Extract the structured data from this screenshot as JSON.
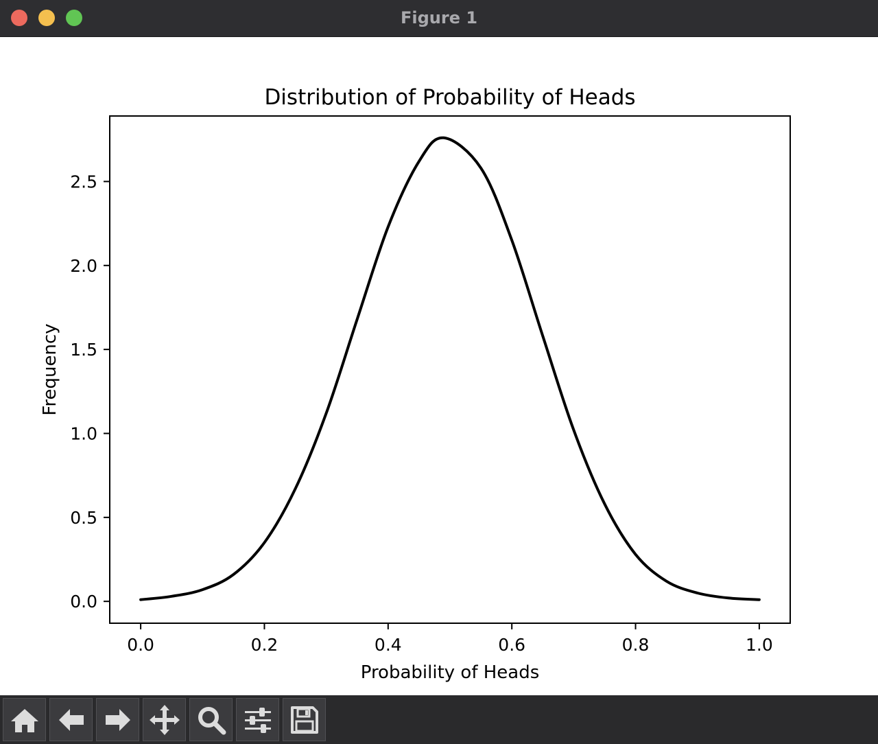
{
  "window": {
    "title": "Figure 1"
  },
  "toolbar": {
    "buttons": [
      {
        "icon": "home-icon"
      },
      {
        "icon": "back-arrow-icon"
      },
      {
        "icon": "forward-arrow-icon"
      },
      {
        "icon": "pan-icon"
      },
      {
        "icon": "zoom-icon"
      },
      {
        "icon": "configure-subplots-icon"
      },
      {
        "icon": "save-icon"
      }
    ]
  },
  "colors": {
    "line": "#000000",
    "titlebar": "#2e2e31",
    "toolbar": "#2a2a2c"
  },
  "chart_data": {
    "type": "line",
    "title": "Distribution of Probability of Heads",
    "xlabel": "Probability of Heads",
    "ylabel": "Frequency",
    "xlim": [
      -0.05,
      1.05
    ],
    "ylim": [
      -0.13,
      2.89
    ],
    "xticks": [
      0.0,
      0.2,
      0.4,
      0.6,
      0.8,
      1.0
    ],
    "xtick_labels": [
      "0.0",
      "0.2",
      "0.4",
      "0.6",
      "0.8",
      "1.0"
    ],
    "yticks": [
      0.0,
      0.5,
      1.0,
      1.5,
      2.0,
      2.5
    ],
    "ytick_labels": [
      "0.0",
      "0.5",
      "1.0",
      "1.5",
      "2.0",
      "2.5"
    ],
    "grid": false,
    "series": [
      {
        "x": [
          0.0,
          0.05,
          0.1,
          0.15,
          0.2,
          0.25,
          0.3,
          0.35,
          0.4,
          0.45,
          0.49,
          0.55,
          0.6,
          0.65,
          0.7,
          0.75,
          0.8,
          0.85,
          0.9,
          0.95,
          1.0
        ],
        "y": [
          0.01,
          0.03,
          0.07,
          0.16,
          0.35,
          0.67,
          1.12,
          1.68,
          2.23,
          2.62,
          2.76,
          2.58,
          2.15,
          1.58,
          1.02,
          0.58,
          0.28,
          0.12,
          0.05,
          0.02,
          0.01
        ]
      }
    ]
  }
}
